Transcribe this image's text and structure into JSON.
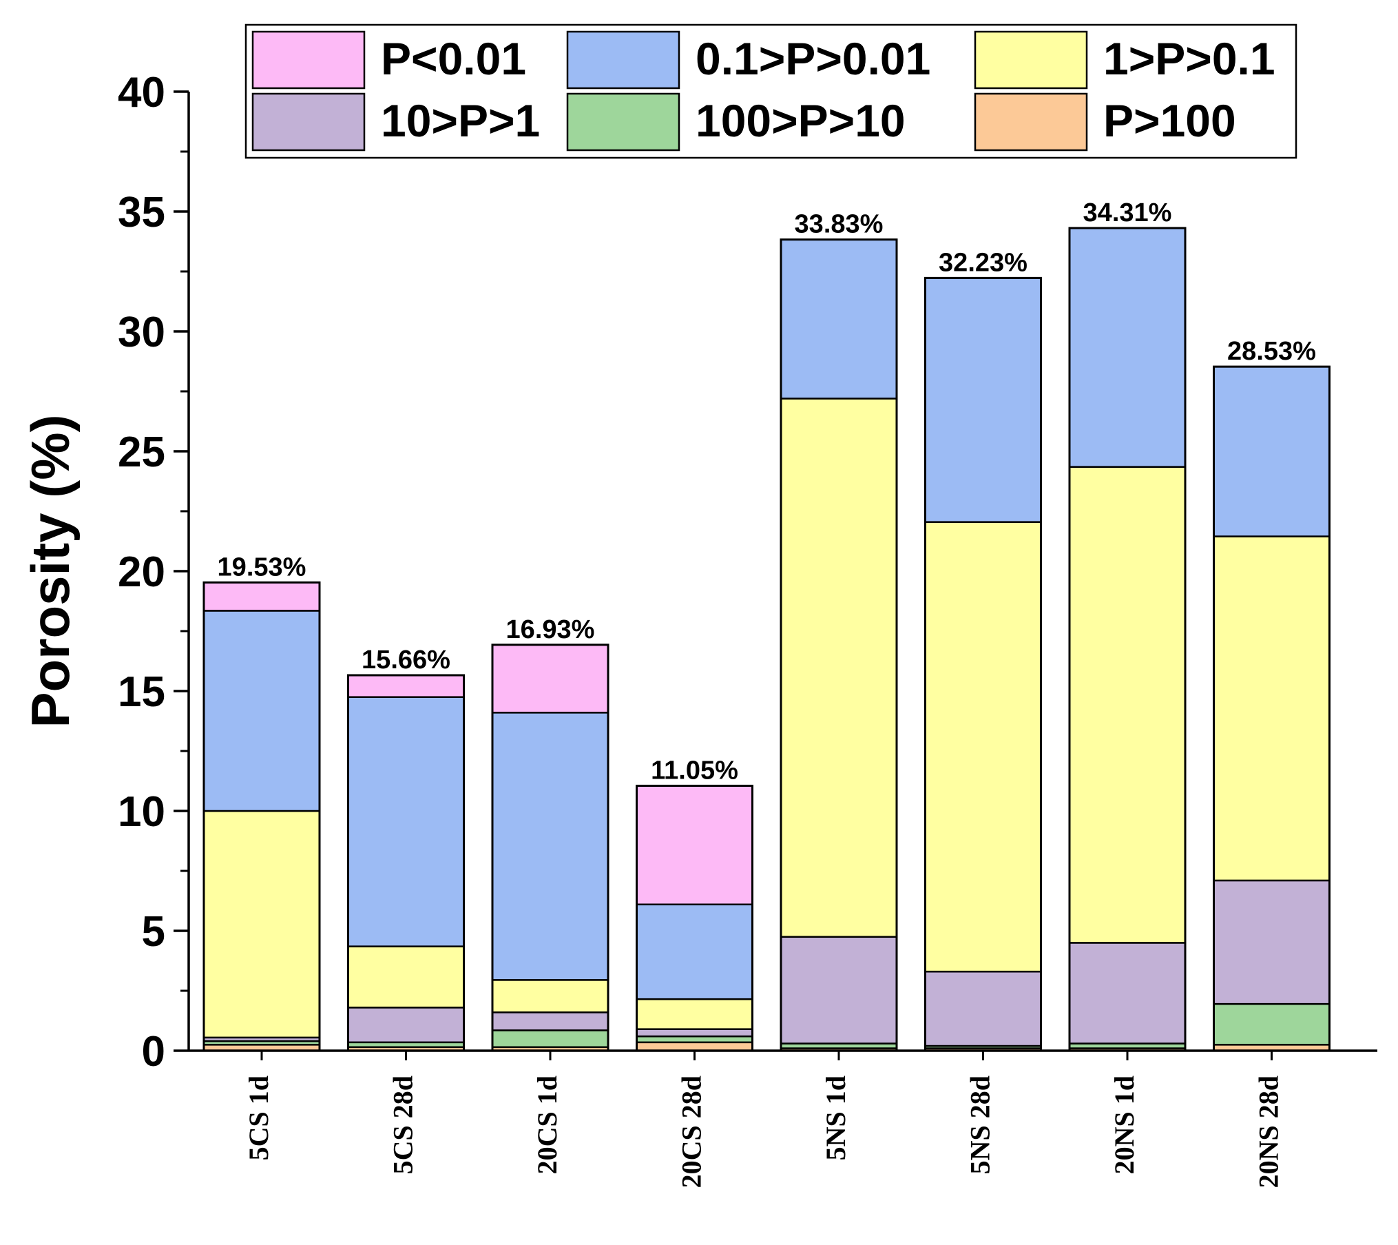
{
  "chart_data": {
    "type": "bar",
    "stacked": true,
    "title": "",
    "xlabel": "",
    "ylabel": "Porosity (%)",
    "ylim": [
      0,
      40
    ],
    "yticks": [
      "0",
      "5",
      "10",
      "15",
      "20",
      "25",
      "30",
      "35",
      "40"
    ],
    "grid": false,
    "legend_position": "top",
    "categories": [
      "5CS 1d",
      "5CS 28d",
      "20CS 1d",
      "20CS 28d",
      "5NS 1d",
      "5NS 28d",
      "20NS 1d",
      "20NS 28d"
    ],
    "totals_labels": [
      "19.53%",
      "15.66%",
      "16.93%",
      "11.05%",
      "33.83%",
      "32.23%",
      "34.31%",
      "28.53%"
    ],
    "series": [
      {
        "name": "P>100",
        "color": "#FCC997",
        "values": [
          0.25,
          0.15,
          0.15,
          0.35,
          0.1,
          0.1,
          0.1,
          0.25
        ]
      },
      {
        "name": "100>P>10",
        "color": "#9ED69B",
        "values": [
          0.15,
          0.2,
          0.7,
          0.25,
          0.2,
          0.1,
          0.2,
          1.7
        ]
      },
      {
        "name": "10>P>1",
        "color": "#C2B1D6",
        "values": [
          0.15,
          1.45,
          0.75,
          0.3,
          4.45,
          3.1,
          4.2,
          5.15
        ]
      },
      {
        "name": "1>P>0.1",
        "color": "#FFFFA1",
        "values": [
          9.45,
          2.55,
          1.35,
          1.25,
          22.45,
          18.75,
          19.85,
          14.35
        ]
      },
      {
        "name": "0.1>P>0.01",
        "color": "#9CBBF4",
        "values": [
          8.35,
          10.4,
          11.15,
          3.95,
          6.63,
          10.18,
          9.96,
          7.08
        ]
      },
      {
        "name": "P<0.01",
        "color": "#FDBAF6",
        "values": [
          1.18,
          0.91,
          2.83,
          4.95,
          0,
          0,
          0,
          0
        ]
      }
    ],
    "legend_order": [
      "P<0.01",
      "0.1>P>0.01",
      "1>P>0.1",
      "10>P>1",
      "100>P>10",
      "P>100"
    ]
  }
}
